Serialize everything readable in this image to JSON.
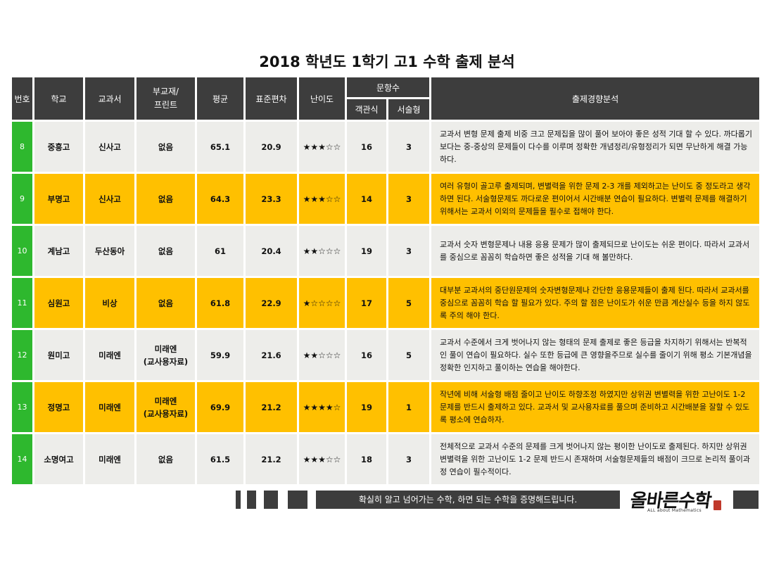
{
  "title": "2018 학년도 1학기 고1 수학 출제 분석",
  "headers": {
    "no": "번호",
    "school": "학교",
    "textbook": "교과서",
    "supplement": "부교재/\n프린트",
    "average": "평균",
    "stddev": "표준편차",
    "difficulty": "난이도",
    "question_count": "문항수",
    "objective": "객관식",
    "essay": "서술형",
    "analysis": "출제경향분석"
  },
  "rows": [
    {
      "no": "8",
      "school": "중흥고",
      "textbook": "신사고",
      "supplement": "없음",
      "average": "65.1",
      "stddev": "20.9",
      "difficulty": "★★★☆☆",
      "difficulty_level": 3,
      "objective": "16",
      "essay": "3",
      "highlight": false,
      "analysis": "교과서 변형 문제 출제 비중 크고 문제집을 많이 풀어 보아야 좋은 성적 기대 할 수 있다. 까다롭기 보다는 중-중상의 문제들이 다수를 이루며 정확한 개념정리/유형정리가 되면 무난하게 해결 가능하다."
    },
    {
      "no": "9",
      "school": "부명고",
      "textbook": "신사고",
      "supplement": "없음",
      "average": "64.3",
      "stddev": "23.3",
      "difficulty": "★★★☆☆",
      "difficulty_level": 3,
      "objective": "14",
      "essay": "3",
      "highlight": true,
      "analysis": "여러 유형이 골고루 출제되며, 변별력을 위한 문제 2-3 개를 제외하고는 난이도 중 정도라고 생각하면 된다. 서술형문제도 까다로운 편이어서 시간배분 연습이 필요하다. 변별력 문제를 해결하기 위해서는 교과서 이외의 문제들을 필수로 접해야 한다."
    },
    {
      "no": "10",
      "school": "계남고",
      "textbook": "두산동아",
      "supplement": "없음",
      "average": "61",
      "stddev": "20.4",
      "difficulty": "★★☆☆☆",
      "difficulty_level": 2,
      "objective": "19",
      "essay": "3",
      "highlight": false,
      "analysis": "교과서 숫자 변형문제나 내용 응용 문제가 많이 출제되므로 난이도는 쉬운 편이다. 따라서 교과서를 중심으로 꼼꼼히 학습하면 좋은 성적을 기대 해 볼만하다."
    },
    {
      "no": "11",
      "school": "심원고",
      "textbook": "비상",
      "supplement": "없음",
      "average": "61.8",
      "stddev": "22.9",
      "difficulty": "★☆☆☆☆",
      "difficulty_level": 1,
      "objective": "17",
      "essay": "5",
      "highlight": true,
      "analysis": "대부분 교과서의 중단원문제의 숫자변형문제나 간단한 응용문제들이 출제 된다. 따라서 교과서를 중심으로 꼼꼼히 학습 할 필요가 있다. 주의 할 점은 난이도가 쉬운 만큼 계산실수 등을 하지 않도록 주의 해야 한다."
    },
    {
      "no": "12",
      "school": "원미고",
      "textbook": "미래엔",
      "supplement": "미래엔\n(교사용자료)",
      "average": "59.9",
      "stddev": "21.6",
      "difficulty": "★★☆☆☆",
      "difficulty_level": 2,
      "objective": "16",
      "essay": "5",
      "highlight": false,
      "analysis": "교과서 수준에서 크게 벗어나지 않는 형태의 문제 출제로 좋은 등급을 차지하기 위해서는 반복적인 풀이 연습이 필요하다. 실수 또한 등급에 큰 영향을주므로 실수를 줄이기 위해 평소 기본개념을 정확한 인지하고 풀이하는 연습을 해야한다."
    },
    {
      "no": "13",
      "school": "정명고",
      "textbook": "미래엔",
      "supplement": "미래엔\n(교사용자료)",
      "average": "69.9",
      "stddev": "21.2",
      "difficulty": "★★★★☆",
      "difficulty_level": 4,
      "objective": "19",
      "essay": "1",
      "highlight": true,
      "analysis": "작년에 비해 서술형 배점 줄이고 난이도 하향조정 하였지만 상위권 변별력을 위한 고난이도 1-2 문제를 반드시 출제하고 있다. 교과서 및 교사용자료를 풀으며 준비하고 시간배분을 잘할 수 있도록 평소에 연습하자."
    },
    {
      "no": "14",
      "school": "소명여고",
      "textbook": "미래엔",
      "supplement": "없음",
      "average": "61.5",
      "stddev": "21.2",
      "difficulty": "★★★☆☆",
      "difficulty_level": 3,
      "objective": "18",
      "essay": "3",
      "highlight": false,
      "analysis": "전체적으로 교과서 수준의 문제를 크게 벗어나지 않는 평이한 난이도로 출제된다. 하지만 상위권 변별력을 위한 고난이도 1-2 문제 반드시 존재하며 서술형문제들의 배점이 크므로 논리적 풀이과정 연습이 필수적이다."
    }
  ],
  "footer": {
    "slogan": "확실히 알고 넘어가는 수학, 하면 되는 수학을 증명해드립니다.",
    "logo_text": "올바른수학",
    "logo_sub": "ALL about Mathematics"
  },
  "colors": {
    "header_bg": "#3d3d3d",
    "number_cell": "#2eb82e",
    "highlight_row": "#ffc000",
    "plain_row": "#ededea"
  }
}
